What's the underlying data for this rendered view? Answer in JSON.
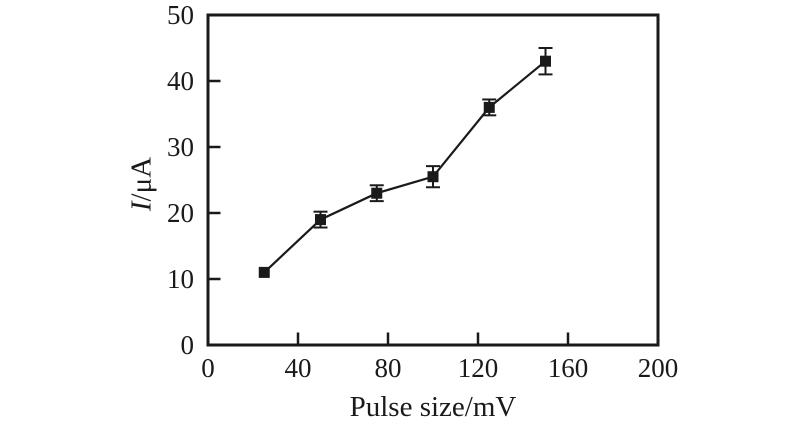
{
  "figure": {
    "background": "#ffffff",
    "ink_color": "#1a1a1a"
  },
  "chart_data": {
    "type": "line",
    "title": "",
    "xlabel": "Pulse size/mV",
    "ylabel": "I/μA",
    "ylabel_parts": [
      {
        "text": "I",
        "italic": true
      },
      {
        "text": "/μA",
        "italic": false
      }
    ],
    "x": [
      25,
      50,
      75,
      100,
      125,
      150
    ],
    "y": [
      11,
      19,
      23,
      25.5,
      36,
      43
    ],
    "yerr": [
      0,
      1.2,
      1.2,
      1.6,
      1.2,
      2
    ],
    "xlim": [
      0,
      200
    ],
    "ylim": [
      0,
      50
    ],
    "xticks": [
      0,
      40,
      80,
      120,
      160,
      200
    ],
    "yticks": [
      0,
      10,
      20,
      30,
      40,
      50
    ],
    "marker": "filled-square",
    "line_style": "solid",
    "error_bars": true,
    "grid": false,
    "legend": "none",
    "frame": "full-box",
    "tick_direction": "in"
  }
}
